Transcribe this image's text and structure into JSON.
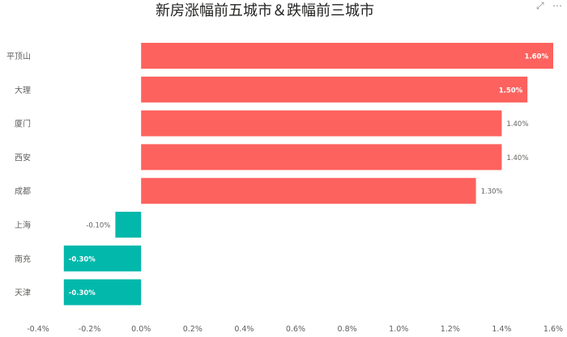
{
  "chart_data": {
    "type": "bar",
    "orientation": "horizontal",
    "title": "新房涨幅前五城市＆跌幅前三城市",
    "categories": [
      "平顶山",
      "大理",
      "厦门",
      "西安",
      "成都",
      "上海",
      "南充",
      "天津"
    ],
    "values": [
      1.6,
      1.5,
      1.4,
      1.4,
      1.3,
      -0.1,
      -0.3,
      -0.3
    ],
    "data_labels": [
      "1.60%",
      "1.50%",
      "1.40%",
      "1.40%",
      "1.30%",
      "-0.10%",
      "-0.30%",
      "-0.30%"
    ],
    "xlim": [
      -0.4,
      1.6
    ],
    "x_ticks": [
      -0.4,
      -0.2,
      0.0,
      0.2,
      0.4,
      0.6,
      0.8,
      1.0,
      1.2,
      1.4,
      1.6
    ],
    "x_tick_labels": [
      "-0.4%",
      "-0.2%",
      "0.0%",
      "0.2%",
      "0.4%",
      "0.6%",
      "0.8%",
      "1.0%",
      "1.2%",
      "1.4%",
      "1.6%"
    ],
    "grid": false,
    "colors": {
      "positive": "#fd625e",
      "negative": "#01b8aa"
    }
  },
  "toolbar": {
    "focus_icon": "focus-mode-icon",
    "more_icon": "more-options-icon"
  }
}
